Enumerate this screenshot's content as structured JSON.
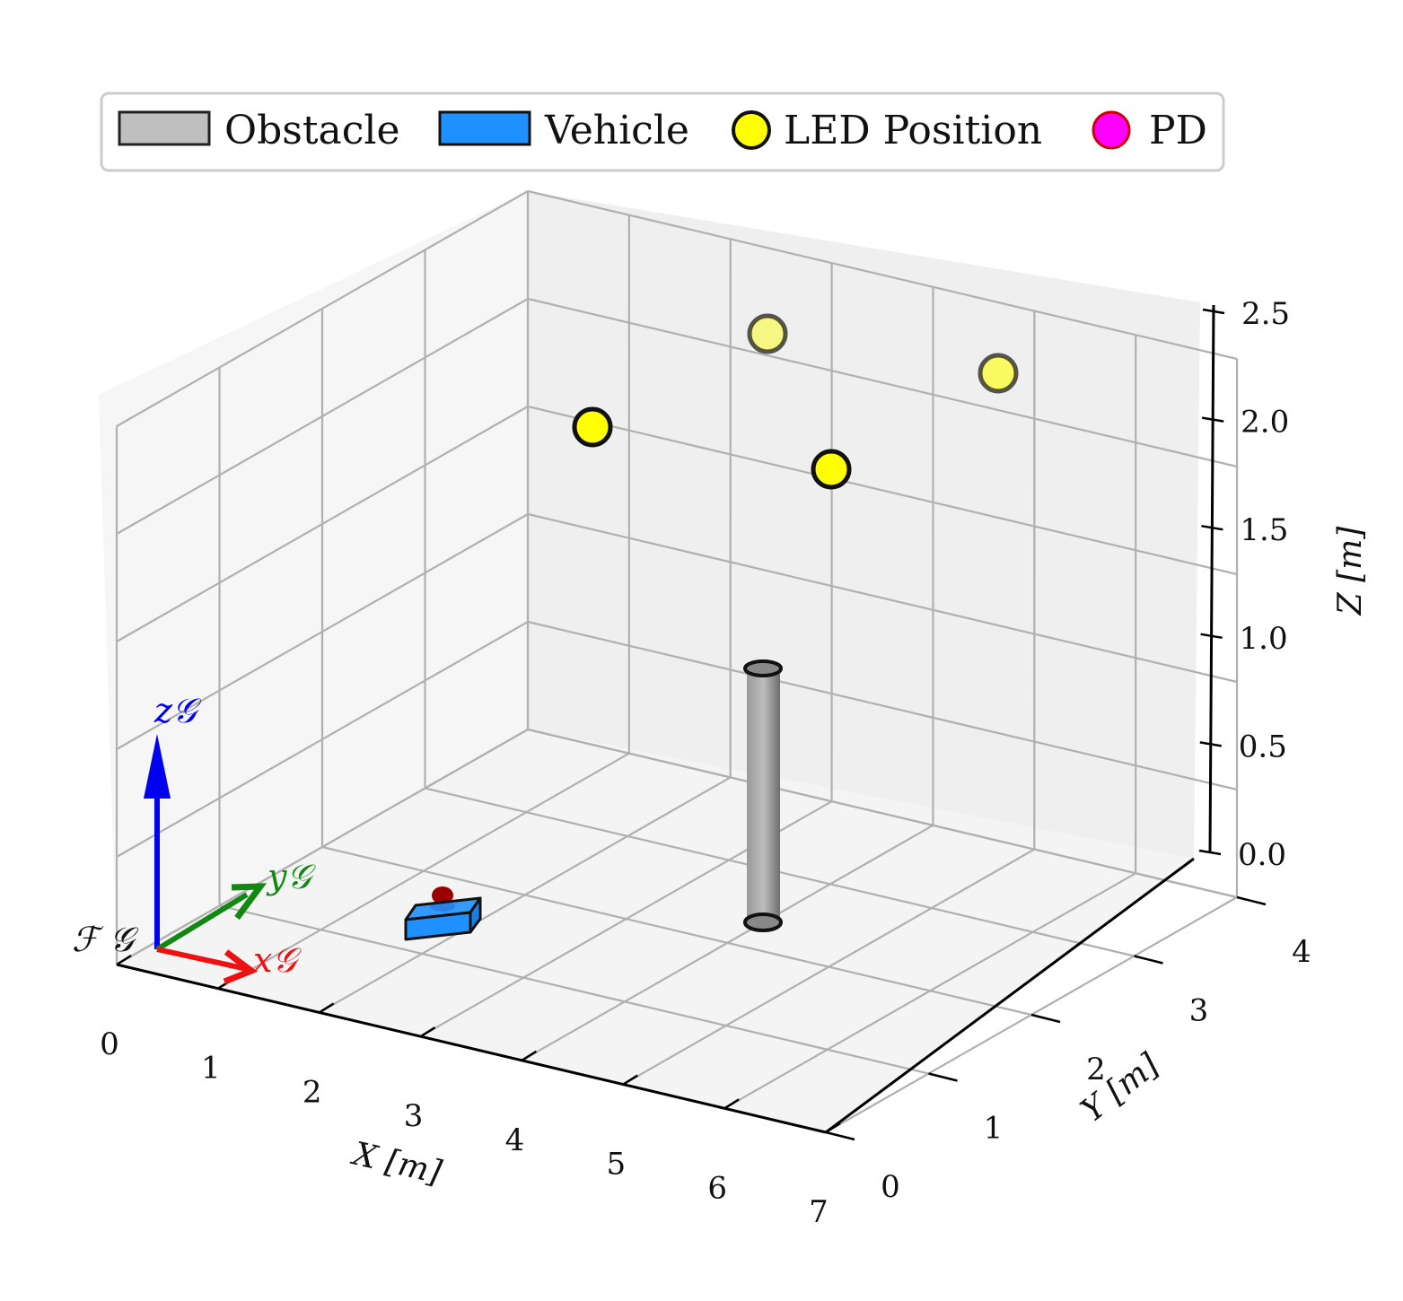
{
  "legend": {
    "items": [
      {
        "label": "Obstacle",
        "kind": "patch",
        "fill": "#bfbfbf",
        "stroke": "#222222"
      },
      {
        "label": "Vehicle",
        "kind": "patch",
        "fill": "#1e90ff",
        "stroke": "#111111"
      },
      {
        "label": "LED Position",
        "kind": "marker",
        "fill": "#ffff00",
        "stroke": "#111111"
      },
      {
        "label": "PD",
        "kind": "marker",
        "fill": "#ff00ff",
        "stroke": "#cc0000"
      }
    ]
  },
  "frame": {
    "label": "ℱ 𝒢",
    "x_label": "x𝒢",
    "y_label": "y𝒢",
    "z_label": "z𝒢",
    "colors": {
      "x": "#ee1111",
      "y": "#118811",
      "z": "#0000ee"
    }
  },
  "chart_data": {
    "type": "scatter3d",
    "xlabel": "X [m]",
    "ylabel": "Y [m]",
    "zlabel": "Z [m]",
    "xlim": [
      0,
      7
    ],
    "ylim": [
      0,
      4
    ],
    "zlim": [
      0,
      2.5
    ],
    "xticks": [
      "0",
      "1",
      "2",
      "3",
      "4",
      "5",
      "6",
      "7"
    ],
    "yticks": [
      "0",
      "1",
      "2",
      "3",
      "4"
    ],
    "zticks": [
      "0.0",
      "0.5",
      "1.0",
      "1.5",
      "2.0",
      "2.5"
    ],
    "grid": true,
    "legend_position": "top",
    "led_positions": [
      {
        "x": 1.0,
        "y": 1.0,
        "z": 2.5
      },
      {
        "x": 4.5,
        "y": 1.0,
        "z": 2.5
      },
      {
        "x": 2.5,
        "y": 3.8,
        "z": 2.5
      },
      {
        "x": 6.0,
        "y": 3.5,
        "z": 2.5
      }
    ],
    "obstacle": {
      "shape": "cylinder",
      "x": 5.0,
      "y": 2.0,
      "z_bottom": 0.0,
      "z_top": 1.0,
      "radius": 0.08
    },
    "vehicle": {
      "x": 2.6,
      "y": 0.6,
      "z": 0.05
    },
    "pd": {
      "x": 2.65,
      "y": 0.75,
      "z": 0.12
    }
  }
}
